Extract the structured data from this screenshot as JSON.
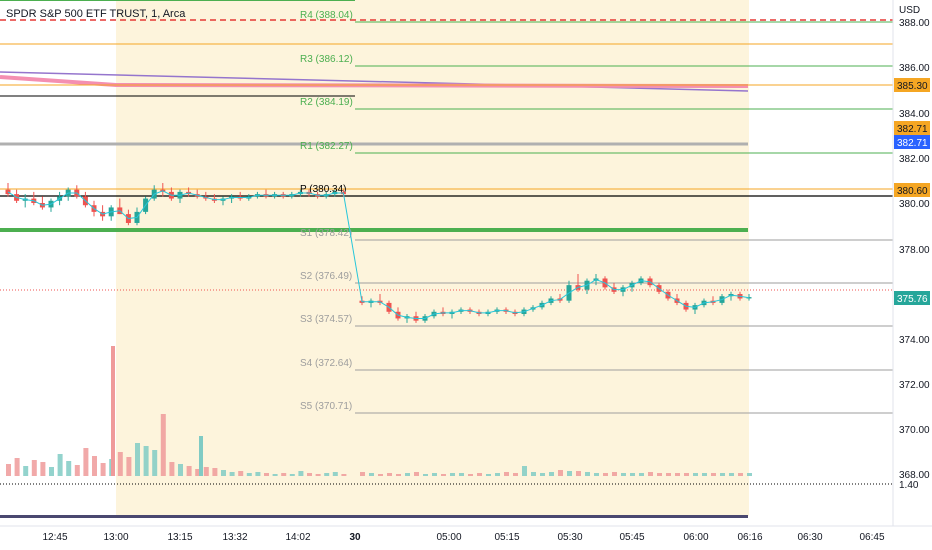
{
  "header": {
    "title": "SPDR S&P 500 ETF TRUST, 1, Arca"
  },
  "price_axis": {
    "currency": "USD"
  },
  "colors": {
    "up": "#26a69a",
    "down": "#ef5350",
    "ma": "#26c6da",
    "session": "#fdf4dc",
    "pivot_r": "#4caf50",
    "pivot_s": "#9e9e9e",
    "pivot_p": "#000000",
    "orange": "#f5a623",
    "pink": "#f48fb1",
    "purple": "#9575cd",
    "red": "#e53935",
    "blue_badge": "#2962ff"
  },
  "chart_data": {
    "type": "candlestick",
    "title": "SPDR S&P 500 ETF TRUST, 1, Arca",
    "ylabel": "USD",
    "ylim": [
      366.9,
      389.5
    ],
    "y_ticks": [
      368.0,
      370.0,
      372.0,
      374.0,
      376.0,
      378.0,
      380.0,
      382.0,
      384.0,
      386.0,
      388.0
    ],
    "x_ticks": [
      "12:45",
      "13:00",
      "13:15",
      "13:32",
      "14:02",
      "30",
      "05:00",
      "05:15",
      "05:30",
      "05:45",
      "06:00",
      "06:16",
      "06:30",
      "06:45"
    ],
    "pivot_levels": [
      {
        "label": "R4 (388.04)",
        "value": 388.04
      },
      {
        "label": "R3 (386.12)",
        "value": 386.12
      },
      {
        "label": "R2 (384.19)",
        "value": 384.19
      },
      {
        "label": "R1 (382.27)",
        "value": 382.27
      },
      {
        "label": "P (380.34)",
        "value": 380.34
      },
      {
        "label": "S1 (378.42)",
        "value": 378.42
      },
      {
        "label": "S2 (376.49)",
        "value": 376.49
      },
      {
        "label": "S3 (374.57)",
        "value": 374.57
      },
      {
        "label": "S4 (372.64)",
        "value": 372.64
      },
      {
        "label": "S5 (370.71)",
        "value": 370.71
      }
    ],
    "price_badges": [
      {
        "text": "385.30",
        "value": 385.3,
        "color": "orange"
      },
      {
        "text": "382.71",
        "value": 382.71,
        "color": "orange"
      },
      {
        "text": "382.71",
        "value": 382.71,
        "color": "blue"
      },
      {
        "text": "380.60",
        "value": 380.6,
        "color": "orange"
      },
      {
        "text": "375.76",
        "value": 375.76,
        "color": "green"
      }
    ],
    "last_price": 375.76,
    "volume_label": "1.40",
    "ohlc": [
      [
        380.6,
        380.9,
        380.3,
        380.4
      ],
      [
        380.4,
        380.6,
        380.0,
        380.1
      ],
      [
        380.1,
        380.4,
        379.8,
        380.2
      ],
      [
        380.2,
        380.5,
        379.9,
        380.0
      ],
      [
        380.0,
        380.3,
        379.7,
        379.8
      ],
      [
        379.8,
        380.2,
        379.6,
        380.1
      ],
      [
        380.1,
        380.5,
        379.9,
        380.3
      ],
      [
        380.3,
        380.7,
        380.1,
        380.6
      ],
      [
        380.6,
        380.8,
        380.2,
        380.3
      ],
      [
        380.3,
        380.5,
        379.8,
        379.9
      ],
      [
        379.9,
        380.1,
        379.4,
        379.6
      ],
      [
        379.6,
        379.9,
        379.2,
        379.4
      ],
      [
        379.4,
        379.9,
        379.2,
        379.8
      ],
      [
        379.8,
        380.2,
        379.5,
        379.5
      ],
      [
        379.5,
        379.7,
        379.0,
        379.1
      ],
      [
        379.1,
        379.8,
        379.0,
        379.6
      ],
      [
        379.6,
        380.3,
        379.5,
        380.2
      ],
      [
        380.2,
        380.8,
        380.1,
        380.6
      ],
      [
        380.6,
        380.9,
        380.3,
        380.5
      ],
      [
        380.5,
        380.7,
        380.1,
        380.2
      ],
      [
        380.2,
        380.6,
        380.0,
        380.5
      ],
      [
        380.5,
        380.7,
        380.3,
        380.4
      ],
      [
        380.4,
        380.6,
        380.2,
        380.3
      ],
      [
        380.3,
        380.5,
        380.1,
        380.2
      ],
      [
        380.2,
        380.4,
        380.0,
        380.1
      ],
      [
        380.1,
        380.3,
        379.9,
        380.2
      ],
      [
        380.2,
        380.4,
        380.0,
        380.3
      ],
      [
        380.3,
        380.5,
        380.1,
        380.2
      ],
      [
        380.2,
        380.4,
        380.1,
        380.3
      ],
      [
        380.3,
        380.5,
        380.2,
        380.4
      ],
      [
        380.4,
        380.6,
        380.2,
        380.3
      ],
      [
        380.3,
        380.5,
        380.2,
        380.4
      ],
      [
        380.4,
        380.5,
        380.2,
        380.3
      ],
      [
        380.3,
        380.5,
        380.2,
        380.4
      ],
      [
        380.4,
        380.6,
        380.3,
        380.5
      ],
      [
        380.5,
        380.6,
        380.3,
        380.4
      ],
      [
        380.4,
        380.5,
        380.2,
        380.3
      ],
      [
        380.3,
        380.5,
        380.2,
        380.4
      ],
      [
        380.4,
        380.6,
        380.3,
        380.5
      ],
      [
        380.5,
        380.6,
        380.3,
        380.4
      ],
      [
        375.6,
        375.8,
        375.4,
        375.5
      ],
      [
        375.5,
        375.7,
        375.3,
        375.6
      ],
      [
        375.6,
        375.9,
        375.4,
        375.5
      ],
      [
        375.5,
        375.6,
        375.0,
        375.1
      ],
      [
        375.1,
        375.3,
        374.7,
        374.8
      ],
      [
        374.8,
        375.0,
        374.6,
        374.9
      ],
      [
        374.9,
        375.1,
        374.6,
        374.7
      ],
      [
        374.7,
        375.0,
        374.6,
        374.9
      ],
      [
        374.9,
        375.2,
        374.8,
        375.1
      ],
      [
        375.1,
        375.3,
        374.9,
        375.0
      ],
      [
        375.0,
        375.2,
        374.8,
        375.1
      ],
      [
        375.1,
        375.3,
        375.0,
        375.2
      ],
      [
        375.2,
        375.3,
        375.0,
        375.1
      ],
      [
        375.1,
        375.2,
        374.9,
        375.0
      ],
      [
        375.0,
        375.2,
        374.9,
        375.1
      ],
      [
        375.1,
        375.3,
        375.0,
        375.2
      ],
      [
        375.2,
        375.3,
        375.0,
        375.1
      ],
      [
        375.1,
        375.2,
        374.9,
        375.0
      ],
      [
        375.0,
        375.3,
        374.9,
        375.2
      ],
      [
        375.2,
        375.4,
        375.1,
        375.3
      ],
      [
        375.3,
        375.6,
        375.2,
        375.5
      ],
      [
        375.5,
        375.8,
        375.4,
        375.7
      ],
      [
        375.7,
        375.9,
        375.5,
        375.6
      ],
      [
        375.6,
        376.5,
        375.5,
        376.3
      ],
      [
        376.3,
        376.8,
        376.0,
        376.1
      ],
      [
        376.1,
        376.6,
        375.9,
        376.5
      ],
      [
        376.5,
        376.8,
        376.3,
        376.6
      ],
      [
        376.6,
        376.7,
        376.1,
        376.2
      ],
      [
        376.2,
        376.4,
        375.9,
        376.0
      ],
      [
        376.0,
        376.3,
        375.8,
        376.2
      ],
      [
        376.2,
        376.5,
        376.0,
        376.4
      ],
      [
        376.4,
        376.7,
        376.3,
        376.6
      ],
      [
        376.6,
        376.7,
        376.2,
        376.3
      ],
      [
        376.3,
        376.4,
        375.9,
        376.0
      ],
      [
        376.0,
        376.1,
        375.6,
        375.7
      ],
      [
        375.7,
        375.9,
        375.4,
        375.5
      ],
      [
        375.5,
        375.6,
        375.1,
        375.2
      ],
      [
        375.2,
        375.5,
        375.0,
        375.4
      ],
      [
        375.4,
        375.7,
        375.3,
        375.6
      ],
      [
        375.6,
        375.8,
        375.4,
        375.5
      ],
      [
        375.5,
        375.9,
        375.4,
        375.8
      ],
      [
        375.8,
        376.0,
        375.6,
        375.9
      ],
      [
        375.9,
        376.0,
        375.6,
        375.7
      ],
      [
        375.7,
        375.9,
        375.6,
        375.76
      ]
    ],
    "volume": [
      12,
      18,
      10,
      16,
      14,
      9,
      22,
      15,
      11,
      28,
      20,
      13,
      17,
      24,
      19,
      33,
      30,
      26,
      62,
      14,
      12,
      10,
      7,
      9,
      8,
      6,
      4,
      5,
      3,
      4,
      3,
      2,
      3,
      2,
      5,
      3,
      2,
      3,
      4,
      2,
      4,
      3,
      2,
      3,
      2,
      3,
      4,
      2,
      3,
      2,
      3,
      3,
      2,
      3,
      2,
      3,
      4,
      3,
      10,
      4,
      3,
      4,
      6,
      5,
      5,
      4,
      3,
      3,
      4,
      3,
      3,
      3,
      4,
      3,
      3,
      3,
      3,
      3,
      3,
      3,
      3,
      3,
      3,
      3
    ],
    "volume_extras": [
      {
        "index": 18,
        "value": 130
      },
      {
        "index": 24,
        "value": 40
      }
    ]
  }
}
